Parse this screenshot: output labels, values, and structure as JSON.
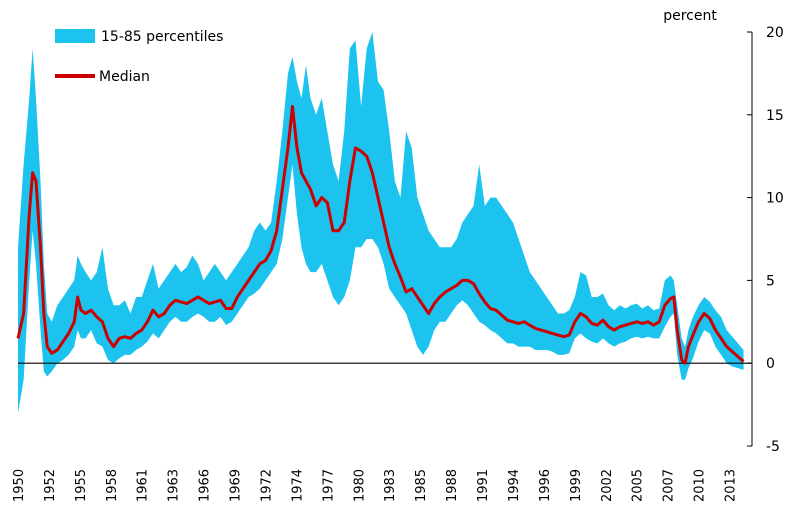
{
  "chart_data": {
    "type": "band-line",
    "y_axis_label": "percent",
    "x": [
      1950.0,
      1950.5,
      1951.0,
      1951.3,
      1951.6,
      1952.0,
      1952.3,
      1952.6,
      1953,
      1953.5,
      1954,
      1954.5,
      1955,
      1955.3,
      1955.6,
      1956,
      1956.5,
      1957,
      1957.5,
      1958,
      1958.5,
      1959,
      1959.5,
      1960,
      1960.5,
      1961,
      1961.5,
      1962,
      1962.5,
      1963,
      1963.5,
      1964,
      1964.5,
      1965,
      1965.5,
      1966,
      1966.5,
      1967,
      1967.5,
      1968,
      1968.5,
      1969,
      1969.5,
      1970,
      1970.5,
      1971,
      1971.5,
      1972,
      1972.5,
      1973,
      1973.5,
      1974,
      1974.4,
      1974.8,
      1975.2,
      1975.6,
      1976,
      1976.5,
      1977,
      1977.5,
      1978,
      1978.5,
      1979,
      1979.5,
      1980,
      1980.5,
      1981,
      1981.5,
      1982,
      1982.5,
      1983,
      1983.5,
      1984,
      1984.5,
      1985,
      1985.5,
      1986,
      1986.5,
      1987,
      1987.5,
      1988,
      1988.5,
      1989,
      1989.5,
      1990,
      1990.5,
      1991,
      1991.5,
      1992,
      1992.5,
      1993,
      1993.5,
      1994,
      1994.5,
      1995,
      1995.5,
      1996,
      1996.5,
      1997,
      1997.5,
      1998,
      1998.5,
      1999,
      1999.5,
      2000,
      2000.5,
      2001,
      2001.5,
      2002,
      2002.5,
      2003,
      2003.5,
      2004,
      2004.5,
      2005,
      2005.5,
      2006,
      2006.5,
      2007,
      2007.5,
      2008,
      2008.3,
      2008.6,
      2009,
      2009.3,
      2009.6,
      2010,
      2010.5,
      2011,
      2011.5,
      2012,
      2012.5,
      2013,
      2013.5,
      2014,
      2014.5
    ],
    "series": [
      {
        "name": "15-85 percentiles",
        "color": "#1cc3ef",
        "lower": [
          -3,
          -1,
          5,
          8,
          6,
          2,
          -0.5,
          -0.8,
          -0.5,
          0,
          0.2,
          0.5,
          1,
          2,
          1.5,
          1.5,
          2,
          1.2,
          1,
          0.2,
          0,
          0.3,
          0.5,
          0.5,
          0.8,
          1,
          1.3,
          1.8,
          1.5,
          2,
          2.5,
          2.8,
          2.5,
          2.5,
          2.8,
          3,
          2.8,
          2.5,
          2.5,
          2.8,
          2.3,
          2.5,
          3,
          3.5,
          4,
          4.2,
          4.5,
          5,
          5.5,
          6,
          7.5,
          10,
          12,
          9,
          7,
          6,
          5.5,
          5.5,
          6,
          5,
          4,
          3.5,
          4,
          5,
          7,
          7,
          7.5,
          7.5,
          7,
          6,
          4.5,
          4,
          3.5,
          3,
          2,
          1,
          0.5,
          1,
          2,
          2.5,
          2.5,
          3,
          3.5,
          3.8,
          3.5,
          3,
          2.5,
          2.3,
          2,
          1.8,
          1.5,
          1.2,
          1.2,
          1,
          1,
          1,
          0.8,
          0.8,
          0.8,
          0.7,
          0.5,
          0.5,
          0.6,
          1.5,
          1.8,
          1.5,
          1.3,
          1.2,
          1.5,
          1.2,
          1,
          1.2,
          1.3,
          1.5,
          1.6,
          1.5,
          1.6,
          1.5,
          1.5,
          2.2,
          2.8,
          3,
          0.5,
          -1,
          -1,
          -0.3,
          0.3,
          1.3,
          2,
          1.8,
          1,
          0.5,
          0,
          -0.2,
          -0.3,
          -0.4
        ],
        "upper": [
          7,
          12,
          16,
          19,
          16,
          11,
          6,
          3,
          2.5,
          3.5,
          4,
          4.5,
          5,
          6.5,
          6,
          5.5,
          5,
          5.5,
          7,
          4.5,
          3.5,
          3.5,
          3.8,
          3,
          4,
          4,
          5,
          6,
          4.5,
          5,
          5.5,
          6,
          5.5,
          5.8,
          6.5,
          6,
          5,
          5.5,
          6,
          5.5,
          5,
          5.5,
          6,
          6.5,
          7,
          8,
          8.5,
          8,
          8.5,
          11,
          14,
          17.5,
          18.5,
          17,
          16,
          18,
          16,
          15,
          16,
          14,
          12,
          11,
          14,
          19,
          19.5,
          15.5,
          19,
          20,
          17,
          16.5,
          14,
          11,
          10,
          14,
          13,
          10,
          9,
          8,
          7.5,
          7,
          7,
          7,
          7.5,
          8.5,
          9,
          9.5,
          12,
          9.5,
          10,
          10,
          9.5,
          9,
          8.5,
          7.5,
          6.5,
          5.5,
          5,
          4.5,
          4,
          3.5,
          3,
          3,
          3.2,
          4,
          5.5,
          5.3,
          4,
          4,
          4.2,
          3.5,
          3.2,
          3.5,
          3.3,
          3.5,
          3.6,
          3.3,
          3.5,
          3.2,
          3.3,
          5,
          5.3,
          5,
          3.5,
          1.5,
          1,
          2,
          2.8,
          3.5,
          4,
          3.7,
          3.2,
          2.8,
          2,
          1.6,
          1.2,
          0.8
        ]
      },
      {
        "name": "Median",
        "color": "#cc0000",
        "values": [
          1.5,
          3,
          9,
          11.5,
          11,
          7,
          3,
          1,
          0.6,
          0.8,
          1.3,
          1.8,
          2.5,
          4,
          3.2,
          3,
          3.2,
          2.8,
          2.5,
          1.5,
          1,
          1.5,
          1.6,
          1.5,
          1.8,
          2,
          2.5,
          3.2,
          2.8,
          3,
          3.5,
          3.8,
          3.7,
          3.6,
          3.8,
          4,
          3.8,
          3.6,
          3.7,
          3.8,
          3.3,
          3.3,
          4,
          4.5,
          5,
          5.5,
          6,
          6.2,
          6.8,
          8,
          10.5,
          13,
          15.5,
          13,
          11.5,
          11,
          10.5,
          9.5,
          10,
          9.7,
          8,
          8,
          8.5,
          11,
          13,
          12.8,
          12.5,
          11.5,
          10,
          8.5,
          7,
          6,
          5.2,
          4.3,
          4.5,
          4,
          3.5,
          3,
          3.6,
          4,
          4.3,
          4.5,
          4.7,
          5,
          5,
          4.8,
          4.2,
          3.7,
          3.3,
          3.2,
          2.9,
          2.6,
          2.5,
          2.4,
          2.5,
          2.3,
          2.1,
          2,
          1.9,
          1.8,
          1.7,
          1.6,
          1.7,
          2.5,
          3,
          2.8,
          2.4,
          2.3,
          2.6,
          2.2,
          2,
          2.2,
          2.3,
          2.4,
          2.5,
          2.4,
          2.5,
          2.3,
          2.5,
          3.5,
          3.9,
          4,
          2,
          0.2,
          0,
          1,
          1.7,
          2.5,
          3,
          2.7,
          2,
          1.5,
          1,
          0.7,
          0.4,
          0.1
        ]
      }
    ],
    "xlim": [
      1950,
      2015.25
    ],
    "xticks": [
      1950,
      {
        "value": 1952.75,
        "label": "1952"
      },
      {
        "value": 1955.5,
        "label": "1955"
      },
      {
        "value": 1958.25,
        "label": "1958"
      },
      1961,
      {
        "value": 1963.75,
        "label": "1963"
      },
      {
        "value": 1966.5,
        "label": "1966"
      },
      {
        "value": 1969.25,
        "label": "1969"
      },
      1972,
      {
        "value": 1974.75,
        "label": "1974"
      },
      {
        "value": 1977.5,
        "label": "1977"
      },
      {
        "value": 1980.25,
        "label": "1980"
      },
      1983,
      {
        "value": 1985.75,
        "label": "1985"
      },
      {
        "value": 1988.5,
        "label": "1988"
      },
      {
        "value": 1991.25,
        "label": "1991"
      },
      1994,
      {
        "value": 1996.75,
        "label": "1996"
      },
      {
        "value": 1999.5,
        "label": "1999"
      },
      {
        "value": 2002.25,
        "label": "2002"
      },
      2005,
      {
        "value": 2007.75,
        "label": "2007"
      },
      {
        "value": 2010.5,
        "label": "2010"
      },
      {
        "value": 2013.25,
        "label": "2013"
      }
    ],
    "ylim": [
      -5,
      20
    ],
    "yticks": [
      -5,
      0,
      5,
      10,
      15,
      20
    ],
    "y_axis_side": "right",
    "legend": "top-left"
  }
}
